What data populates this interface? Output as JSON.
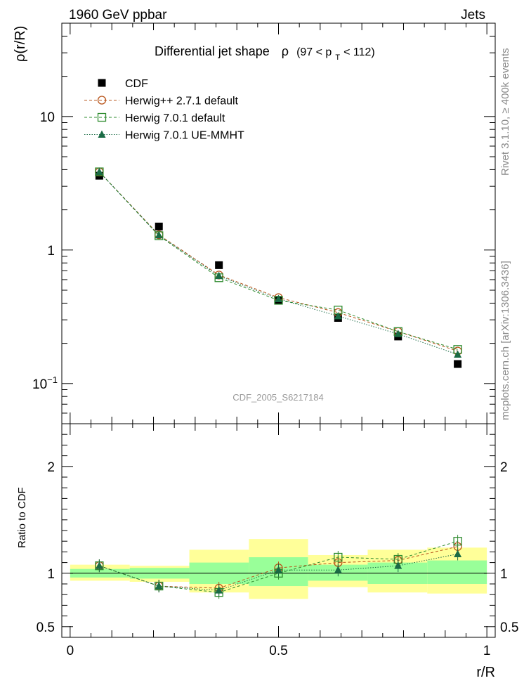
{
  "header": {
    "energy_label": "1960 GeV ppbar",
    "category_label": "Jets"
  },
  "side_labels": {
    "rivet": "Rivet 3.1.10, ≥ 400k events",
    "mcplots": "mcplots.cern.ch [arXiv:1306.3436]"
  },
  "colors": {
    "cdf": "#000000",
    "herwigpp": "#b8541a",
    "herwig7_default": "#2e8b2e",
    "herwig7_uemmht": "#1a6b45",
    "band_inner": "#99ff99",
    "band_outer": "#ffff99"
  },
  "chart_data": [
    {
      "type": "line",
      "title_main": "Differential jet shape",
      "title_var": "ρ",
      "title_cut": "(97 < p",
      "title_cut_sub": "T",
      "title_cut_end": " < 112)",
      "ylabel": "ρ(r/R)",
      "yscale": "log",
      "ylim": [
        0.05,
        50
      ],
      "xlim": [
        -0.02,
        1.02
      ],
      "yticks": [
        {
          "value": 0.1,
          "label_base": "10",
          "label_exp": "−1"
        },
        {
          "value": 1,
          "label_base": "1",
          "label_exp": ""
        },
        {
          "value": 10,
          "label_base": "10",
          "label_exp": ""
        }
      ],
      "watermark": "CDF_2005_S6217184",
      "x": [
        0.07,
        0.213,
        0.357,
        0.5,
        0.643,
        0.787,
        0.93
      ],
      "x_half_width": 0.0714,
      "series": [
        {
          "name": "CDF",
          "marker": "square_filled",
          "color_key": "cdf",
          "values": [
            3.6,
            1.5,
            0.77,
            0.42,
            0.31,
            0.225,
            0.14
          ]
        },
        {
          "name": "Herwig++ 2.7.1 default",
          "marker": "circle_open",
          "color_key": "herwigpp",
          "dash": "4,3",
          "values": [
            3.85,
            1.3,
            0.65,
            0.44,
            0.34,
            0.245,
            0.175
          ]
        },
        {
          "name": "Herwig 7.0.1 default",
          "marker": "square_open",
          "color_key": "herwig7_default",
          "dash": "4,3",
          "values": [
            3.85,
            1.28,
            0.62,
            0.42,
            0.355,
            0.245,
            0.18
          ]
        },
        {
          "name": "Herwig 7.0.1 UE-MMHT",
          "marker": "triangle_filled",
          "color_key": "herwig7_uemmht",
          "dash": "1.5,2",
          "values": [
            3.85,
            1.29,
            0.64,
            0.43,
            0.32,
            0.235,
            0.165
          ]
        }
      ]
    },
    {
      "type": "line",
      "ylabel": "Ratio to CDF",
      "xlabel": "r/R",
      "ylim": [
        0.4,
        2.4
      ],
      "xlim": [
        -0.02,
        1.02
      ],
      "yticks": [
        0.5,
        1,
        2
      ],
      "ytick_labels": [
        "0.5",
        "1",
        "2"
      ],
      "xticks": [
        0,
        0.5,
        1
      ],
      "xtick_labels": [
        "0",
        "0.5",
        "1"
      ],
      "x": [
        0.07,
        0.213,
        0.357,
        0.5,
        0.643,
        0.787,
        0.93
      ],
      "bins": [
        [
          0,
          0.143
        ],
        [
          0.143,
          0.286
        ],
        [
          0.286,
          0.429
        ],
        [
          0.429,
          0.571
        ],
        [
          0.571,
          0.714
        ],
        [
          0.714,
          0.857
        ],
        [
          0.857,
          1.0
        ]
      ],
      "band_inner": [
        [
          0.96,
          1.04
        ],
        [
          0.95,
          1.05
        ],
        [
          0.9,
          1.1
        ],
        [
          0.88,
          1.15
        ],
        [
          0.93,
          1.08
        ],
        [
          0.9,
          1.1
        ],
        [
          0.9,
          1.12
        ]
      ],
      "band_outer": [
        [
          0.93,
          1.08
        ],
        [
          0.92,
          1.07
        ],
        [
          0.82,
          1.22
        ],
        [
          0.76,
          1.32
        ],
        [
          0.87,
          1.17
        ],
        [
          0.82,
          1.22
        ],
        [
          0.81,
          1.24
        ]
      ],
      "series": [
        {
          "name": "Herwig++ 2.7.1 default",
          "marker": "circle_open",
          "color_key": "herwigpp",
          "dash": "4,3",
          "values": [
            1.07,
            0.88,
            0.86,
            1.05,
            1.1,
            1.12,
            1.25
          ]
        },
        {
          "name": "Herwig 7.0.1 default",
          "marker": "square_open",
          "color_key": "herwig7_default",
          "dash": "4,3",
          "values": [
            1.07,
            0.88,
            0.82,
            1.0,
            1.15,
            1.13,
            1.3
          ]
        },
        {
          "name": "Herwig 7.0.1 UE-MMHT",
          "marker": "triangle_filled",
          "color_key": "herwig7_uemmht",
          "dash": "1.5,2",
          "values": [
            1.07,
            0.88,
            0.84,
            1.03,
            1.03,
            1.07,
            1.18
          ]
        }
      ]
    }
  ]
}
